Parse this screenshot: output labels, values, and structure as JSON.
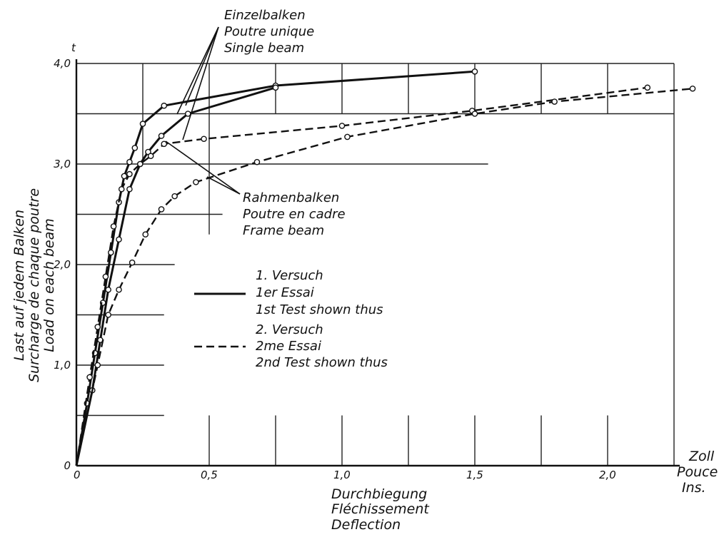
{
  "chart_data": {
    "type": "line",
    "x_unit_label": [
      "Zoll",
      "Pouce",
      "Ins."
    ],
    "y_unit_label": "t",
    "xlabel": [
      "Durchbiegung",
      "Fléchissement",
      "Deflection"
    ],
    "ylabel": [
      "Last auf jedem Balken",
      "Surcharge de chaque poutre",
      "Load on each beam"
    ],
    "x_ticks": [
      0,
      0.5,
      1.0,
      1.5,
      2.0
    ],
    "x_tick_labels": [
      "0",
      "0,5",
      "1,0",
      "1,5",
      "2,0"
    ],
    "y_ticks": [
      0,
      1.0,
      2.0,
      3.0,
      4.0
    ],
    "y_tick_labels": [
      "0",
      "1,0",
      "2,0",
      "3,0",
      "4,0"
    ],
    "xlim": [
      0,
      2.25
    ],
    "ylim": [
      0,
      4.0
    ],
    "annotations": {
      "single_beam": [
        "Einzelbalken",
        "Poutre unique",
        "Single beam"
      ],
      "frame_beam": [
        "Rahmenbalken",
        "Poutre en cadre",
        "Frame beam"
      ]
    },
    "legend": {
      "test1": [
        "1. Versuch",
        "1er Essai",
        "1st Test shown thus"
      ],
      "test2": [
        "2. Versuch",
        "2me Essai",
        "2nd Test shown thus"
      ]
    },
    "series": [
      {
        "style": "solid",
        "x": [
          0.0,
          0.04,
          0.07,
          0.1,
          0.13,
          0.16,
          0.18,
          0.2,
          0.22,
          0.25,
          0.33,
          0.75,
          1.5
        ],
        "y": [
          0.0,
          0.62,
          1.12,
          1.62,
          2.12,
          2.62,
          2.88,
          3.02,
          3.16,
          3.4,
          3.58,
          3.78,
          3.92
        ]
      },
      {
        "style": "solid",
        "x": [
          0.0,
          0.06,
          0.09,
          0.12,
          0.16,
          0.2,
          0.24,
          0.27,
          0.32,
          0.42,
          0.75
        ],
        "y": [
          0.0,
          0.75,
          1.25,
          1.75,
          2.25,
          2.75,
          3.0,
          3.12,
          3.28,
          3.5,
          3.76
        ]
      },
      {
        "style": "dashed",
        "x": [
          0.0,
          0.05,
          0.08,
          0.11,
          0.14,
          0.17,
          0.2,
          0.24,
          0.28,
          0.33,
          0.48,
          1.0,
          1.49,
          2.15
        ],
        "y": [
          0.0,
          0.88,
          1.38,
          1.88,
          2.38,
          2.75,
          2.9,
          3.0,
          3.08,
          3.2,
          3.25,
          3.38,
          3.53,
          3.76
        ]
      },
      {
        "style": "dashed",
        "x": [
          0.0,
          0.08,
          0.12,
          0.16,
          0.21,
          0.26,
          0.32,
          0.37,
          0.45,
          0.68,
          1.02,
          1.5,
          1.8,
          2.32
        ],
        "y": [
          0.0,
          1.0,
          1.5,
          1.75,
          2.02,
          2.3,
          2.55,
          2.68,
          2.82,
          3.02,
          3.27,
          3.5,
          3.62,
          3.75
        ]
      }
    ]
  }
}
